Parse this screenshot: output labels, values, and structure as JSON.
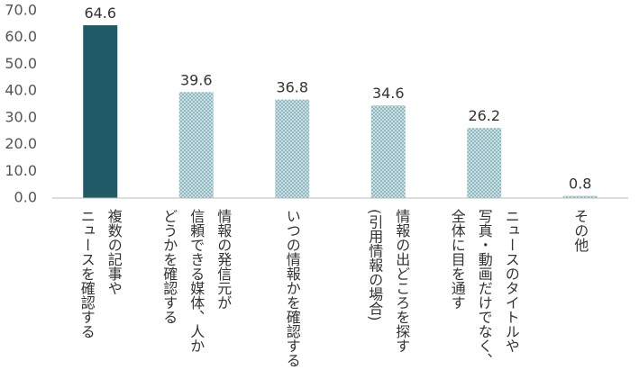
{
  "chart_data": {
    "type": "bar",
    "categories": [
      [
        "複数の記事や",
        "ニュースを確認する"
      ],
      [
        "情報の発信元が",
        "信頼できる媒体、人か",
        "どうかを確認する"
      ],
      [
        "いつの情報かを確認する"
      ],
      [
        "情報の出どころを探す",
        "(引用情報の場合)"
      ],
      [
        "ニュースのタイトルや",
        "写真・動画だけでなく、",
        "全体に目を通す"
      ],
      [
        "その他"
      ]
    ],
    "values": [
      64.6,
      39.6,
      36.8,
      34.6,
      26.2,
      0.8
    ],
    "value_labels": [
      "64.6",
      "39.6",
      "36.8",
      "34.6",
      "26.2",
      "0.8"
    ],
    "colors": [
      "#215a67",
      "#8fb9c1",
      "#8fb9c1",
      "#8fb9c1",
      "#8fb9c1",
      "#8fb9c1"
    ],
    "patterned": [
      false,
      true,
      true,
      true,
      true,
      true
    ],
    "ylim": [
      0,
      70
    ],
    "yticks": [
      {
        "value": 0,
        "label": "0.0"
      },
      {
        "value": 10,
        "label": "10.0"
      },
      {
        "value": 20,
        "label": "20.0"
      },
      {
        "value": 30,
        "label": "30.0"
      },
      {
        "value": 40,
        "label": "40.0"
      },
      {
        "value": 50,
        "label": "50.0"
      },
      {
        "value": 60,
        "label": "60.0"
      },
      {
        "value": 70,
        "label": "70.0"
      }
    ],
    "grid": false
  }
}
